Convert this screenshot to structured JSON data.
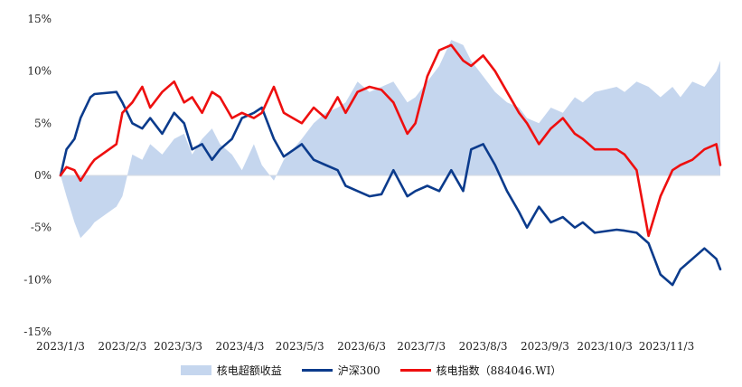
{
  "chart_data": {
    "type": "line",
    "y_ticks": [
      "15%",
      "10%",
      "5%",
      "0%",
      "-5%",
      "-10%",
      "-15%"
    ],
    "y_tick_values": [
      15,
      10,
      5,
      0,
      -5,
      -10,
      -15
    ],
    "ylim": [
      -15,
      15
    ],
    "x_ticks": [
      "2023/1/3",
      "2023/2/3",
      "2023/3/3",
      "2023/4/3",
      "2023/5/3",
      "2023/6/3",
      "2023/7/3",
      "2023/8/3",
      "2023/9/3",
      "2023/10/3",
      "2023/11/3"
    ],
    "xlim": [
      "2023/1/3",
      "2023/11/30"
    ],
    "grid": false,
    "legend_position": "bottom",
    "series": [
      {
        "name": "核电超额收益",
        "kind": "area",
        "color": "#c5d6ee",
        "x": [
          "2023/1/3",
          "2023/1/6",
          "2023/1/10",
          "2023/1/13",
          "2023/1/18",
          "2023/1/20",
          "2023/1/31",
          "2023/2/3",
          "2023/2/8",
          "2023/2/13",
          "2023/2/17",
          "2023/2/23",
          "2023/3/1",
          "2023/3/6",
          "2023/3/10",
          "2023/3/15",
          "2023/3/20",
          "2023/3/24",
          "2023/3/30",
          "2023/4/4",
          "2023/4/10",
          "2023/4/14",
          "2023/4/20",
          "2023/4/25",
          "2023/5/4",
          "2023/5/10",
          "2023/5/16",
          "2023/5/22",
          "2023/5/26",
          "2023/6/1",
          "2023/6/7",
          "2023/6/13",
          "2023/6/19",
          "2023/6/26",
          "2023/6/30",
          "2023/7/6",
          "2023/7/12",
          "2023/7/18",
          "2023/7/24",
          "2023/7/28",
          "2023/8/3",
          "2023/8/9",
          "2023/8/15",
          "2023/8/21",
          "2023/8/25",
          "2023/8/31",
          "2023/9/6",
          "2023/9/12",
          "2023/9/18",
          "2023/9/22",
          "2023/9/28",
          "2023/10/9",
          "2023/10/13",
          "2023/10/19",
          "2023/10/25",
          "2023/10/31",
          "2023/11/6",
          "2023/11/10",
          "2023/11/16",
          "2023/11/22",
          "2023/11/28",
          "2023/11/30"
        ],
        "values": [
          0,
          -2,
          -4.5,
          -6,
          -5,
          -4.5,
          -3,
          -2,
          2,
          1.5,
          3,
          2,
          3.5,
          4,
          2,
          3.5,
          4.5,
          3,
          2,
          0.5,
          3,
          1,
          -0.5,
          1.5,
          3.5,
          5,
          6,
          6.5,
          7,
          9,
          8,
          8.5,
          9,
          7,
          7.5,
          9,
          10.5,
          13,
          12.5,
          11,
          9.5,
          8,
          7,
          6.5,
          5.5,
          5,
          6.5,
          6,
          7.5,
          7,
          8,
          8.5,
          8,
          9,
          8.5,
          7.5,
          8.5,
          7.5,
          9,
          8.5,
          10,
          11
        ]
      },
      {
        "name": "沪深300",
        "kind": "line",
        "color": "#0b3b8c",
        "x": [
          "2023/1/3",
          "2023/1/6",
          "2023/1/10",
          "2023/1/13",
          "2023/1/18",
          "2023/1/20",
          "2023/1/31",
          "2023/2/3",
          "2023/2/8",
          "2023/2/13",
          "2023/2/17",
          "2023/2/23",
          "2023/3/1",
          "2023/3/6",
          "2023/3/10",
          "2023/3/15",
          "2023/3/20",
          "2023/3/24",
          "2023/3/30",
          "2023/4/4",
          "2023/4/10",
          "2023/4/14",
          "2023/4/20",
          "2023/4/25",
          "2023/5/4",
          "2023/5/10",
          "2023/5/16",
          "2023/5/22",
          "2023/5/26",
          "2023/6/1",
          "2023/6/7",
          "2023/6/13",
          "2023/6/19",
          "2023/6/26",
          "2023/6/30",
          "2023/7/6",
          "2023/7/12",
          "2023/7/18",
          "2023/7/24",
          "2023/7/28",
          "2023/8/3",
          "2023/8/9",
          "2023/8/15",
          "2023/8/21",
          "2023/8/25",
          "2023/8/31",
          "2023/9/6",
          "2023/9/12",
          "2023/9/18",
          "2023/9/22",
          "2023/9/28",
          "2023/10/9",
          "2023/10/13",
          "2023/10/19",
          "2023/10/25",
          "2023/10/31",
          "2023/11/6",
          "2023/11/10",
          "2023/11/16",
          "2023/11/22",
          "2023/11/28",
          "2023/11/30"
        ],
        "values": [
          0,
          2.5,
          3.5,
          5.5,
          7.5,
          7.8,
          8,
          7,
          5,
          4.5,
          5.5,
          4,
          6,
          5,
          2.5,
          3,
          1.5,
          2.5,
          3.5,
          5.5,
          6,
          6.5,
          3.5,
          1.8,
          3,
          1.5,
          1,
          0.5,
          -1,
          -1.5,
          -2,
          -1.8,
          0.5,
          -2,
          -1.5,
          -1,
          -1.5,
          0.5,
          -1.5,
          2.5,
          3,
          1,
          -1.5,
          -3.5,
          -5,
          -3,
          -4.5,
          -4,
          -5,
          -4.5,
          -5.5,
          -5.2,
          -5.3,
          -5.5,
          -6.5,
          -9.5,
          -10.5,
          -9,
          -8,
          -7,
          -8,
          -9
        ]
      },
      {
        "name": "核电指数（884046.WI）",
        "kind": "line",
        "color": "#ee0f0f",
        "x": [
          "2023/1/3",
          "2023/1/6",
          "2023/1/10",
          "2023/1/13",
          "2023/1/18",
          "2023/1/20",
          "2023/1/31",
          "2023/2/3",
          "2023/2/8",
          "2023/2/13",
          "2023/2/17",
          "2023/2/23",
          "2023/3/1",
          "2023/3/6",
          "2023/3/10",
          "2023/3/15",
          "2023/3/20",
          "2023/3/24",
          "2023/3/30",
          "2023/4/4",
          "2023/4/10",
          "2023/4/14",
          "2023/4/20",
          "2023/4/25",
          "2023/5/4",
          "2023/5/10",
          "2023/5/16",
          "2023/5/22",
          "2023/5/26",
          "2023/6/1",
          "2023/6/7",
          "2023/6/13",
          "2023/6/19",
          "2023/6/26",
          "2023/6/30",
          "2023/7/6",
          "2023/7/12",
          "2023/7/18",
          "2023/7/24",
          "2023/7/28",
          "2023/8/3",
          "2023/8/9",
          "2023/8/15",
          "2023/8/21",
          "2023/8/25",
          "2023/8/31",
          "2023/9/6",
          "2023/9/12",
          "2023/9/18",
          "2023/9/22",
          "2023/9/28",
          "2023/10/9",
          "2023/10/13",
          "2023/10/19",
          "2023/10/25",
          "2023/10/31",
          "2023/11/6",
          "2023/11/10",
          "2023/11/16",
          "2023/11/22",
          "2023/11/28",
          "2023/11/30"
        ],
        "values": [
          0,
          0.8,
          0.5,
          -0.5,
          1,
          1.5,
          3,
          6,
          7,
          8.5,
          6.5,
          8,
          9,
          7,
          7.5,
          6,
          8,
          7.5,
          5.5,
          6,
          5.5,
          6,
          8.5,
          6,
          5,
          6.5,
          5.5,
          7.5,
          6,
          8,
          8.5,
          8.2,
          7,
          4,
          5,
          9.5,
          12,
          12.5,
          11,
          10.5,
          11.5,
          10,
          8,
          6,
          5,
          3,
          4.5,
          5.5,
          4,
          3.5,
          2.5,
          2.5,
          2,
          0.5,
          -5.8,
          -2,
          0.5,
          1,
          1.5,
          2.5,
          3,
          1
        ]
      }
    ]
  }
}
